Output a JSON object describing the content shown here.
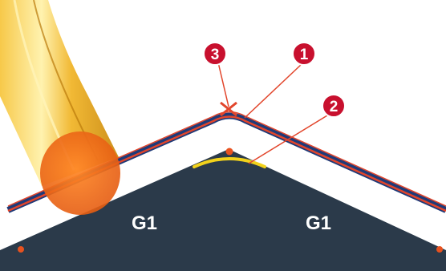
{
  "diagram": {
    "regions": [
      {
        "id": "left",
        "label": "G1"
      },
      {
        "id": "right",
        "label": "G1"
      }
    ],
    "markers": [
      {
        "id": "marker-1",
        "number": "1",
        "target": "offset-toolpath"
      },
      {
        "id": "marker-2",
        "number": "2",
        "target": "corner-arc"
      },
      {
        "id": "marker-3",
        "number": "3",
        "target": "sharp-corner-point"
      }
    ],
    "colors": {
      "workpiece": "#2b3a4a",
      "path_outer": "#1f3a78",
      "path_inner": "#e2452b",
      "corner_arc": "#f2d21b",
      "marker_fill": "#c8102e",
      "tool_body": "#e8a418",
      "tool_tip": "#ef6a12",
      "point": "#e8521f"
    }
  }
}
